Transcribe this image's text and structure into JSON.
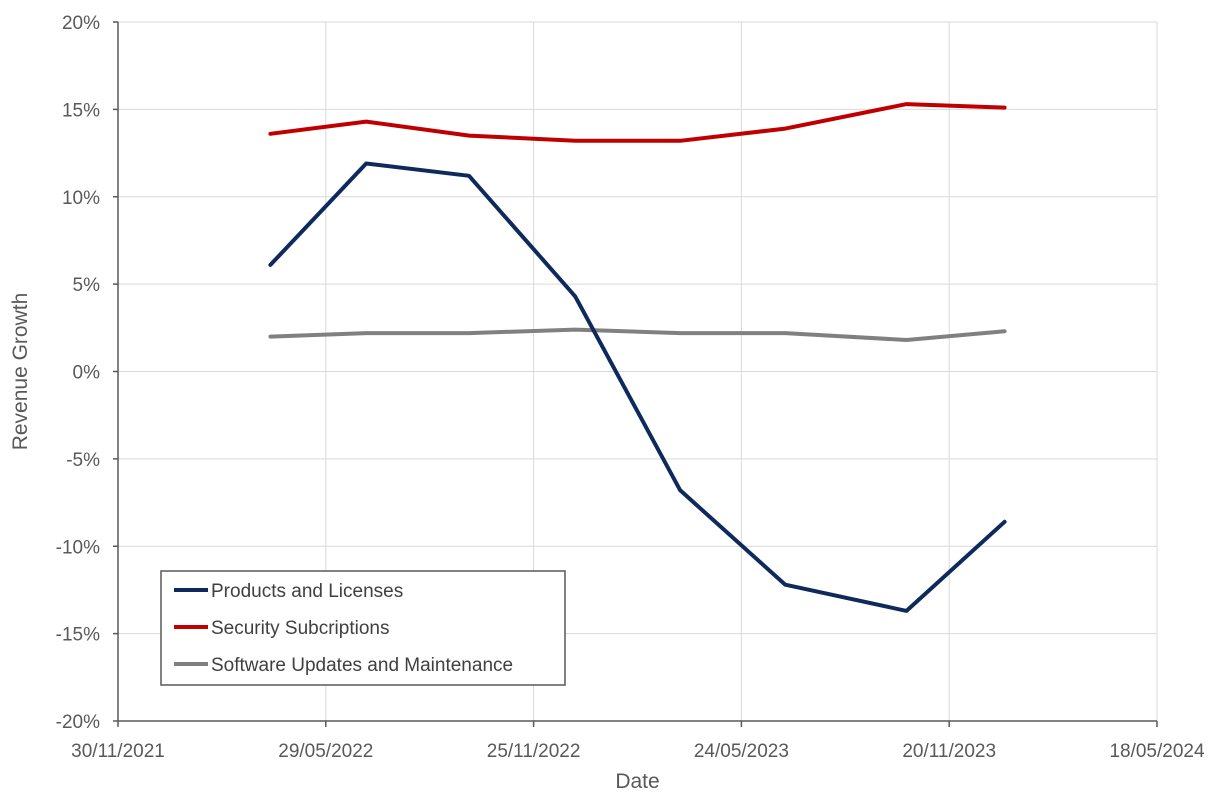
{
  "chart_data": {
    "type": "line",
    "title": "",
    "xlabel": "Date",
    "ylabel": "Revenue Growth",
    "x_axis": {
      "type": "date",
      "min": "2021-11-30",
      "max": "2024-05-18",
      "tick_dates": [
        "2021-11-30",
        "2022-05-29",
        "2022-11-25",
        "2023-05-24",
        "2023-11-20",
        "2024-05-18"
      ],
      "tick_labels": [
        "30/11/2021",
        "29/05/2022",
        "25/11/2022",
        "24/05/2023",
        "20/11/2023",
        "18/05/2024"
      ]
    },
    "y_axis": {
      "min": -20,
      "max": 20,
      "step": 5,
      "unit": "%",
      "tick_labels": [
        "20%",
        "15%",
        "10%",
        "5%",
        "0%",
        "-5%",
        "-10%",
        "-15%",
        "-20%"
      ]
    },
    "grid": true,
    "legend_position": "bottom-left",
    "series": [
      {
        "name": "Products and Licenses",
        "color": "#0e2a5c",
        "x": [
          "2022-04-11",
          "2022-07-03",
          "2022-09-30",
          "2022-12-31",
          "2023-04-01",
          "2023-07-01",
          "2023-10-14",
          "2024-01-07"
        ],
        "y": [
          6.1,
          11.9,
          11.2,
          4.3,
          -6.8,
          -12.2,
          -13.7,
          -8.6
        ]
      },
      {
        "name": "Security Subcriptions",
        "color": "#c00000",
        "x": [
          "2022-04-11",
          "2022-07-03",
          "2022-09-30",
          "2022-12-31",
          "2023-04-01",
          "2023-07-01",
          "2023-10-14",
          "2024-01-07"
        ],
        "y": [
          13.6,
          14.3,
          13.5,
          13.2,
          13.2,
          13.9,
          15.3,
          15.1
        ]
      },
      {
        "name": "Software Updates and Maintenance",
        "color": "#808080",
        "x": [
          "2022-04-11",
          "2022-07-03",
          "2022-09-30",
          "2022-12-31",
          "2023-04-01",
          "2023-07-01",
          "2023-10-14",
          "2024-01-07"
        ],
        "y": [
          2.0,
          2.2,
          2.2,
          2.4,
          2.2,
          2.2,
          1.8,
          2.3
        ]
      }
    ]
  }
}
